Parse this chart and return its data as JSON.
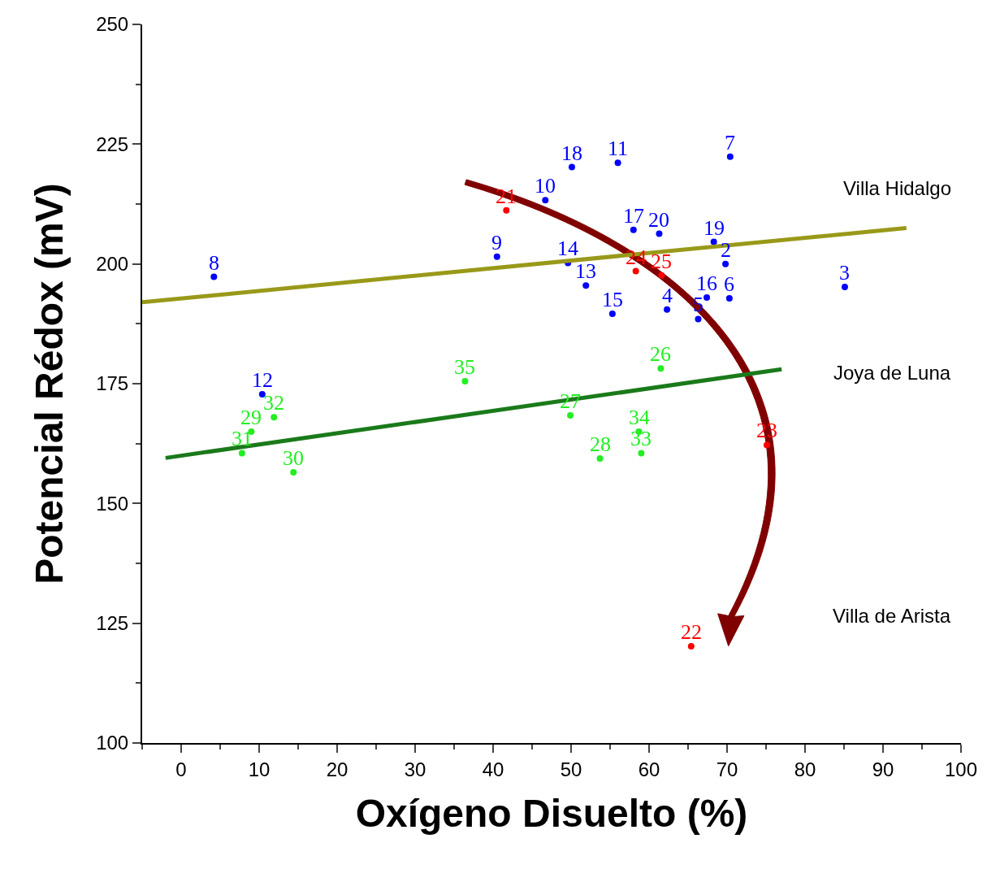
{
  "chart_data": {
    "type": "scatter",
    "xlabel": "Oxígeno Disuelto (%)",
    "ylabel": "Potencial Rédox (mV)",
    "xlim": [
      -5,
      100
    ],
    "ylim": [
      100,
      250
    ],
    "xticks": [
      0,
      10,
      20,
      30,
      40,
      50,
      60,
      70,
      80,
      90,
      100
    ],
    "yticks": [
      100,
      125,
      150,
      175,
      200,
      225,
      250
    ],
    "grid": false,
    "marker": "circle",
    "annotations": [
      "Villa Hidalgo",
      "Joya de Luna",
      "Villa de Arista",
      {
        "text": "8",
        "x": 4.2,
        "y": 197.3
      },
      {
        "text": "9",
        "x": 40.5,
        "y": 201.5
      },
      {
        "text": "10",
        "x": 46.7,
        "y": 213.3
      },
      {
        "text": "18",
        "x": 50.1,
        "y": 220.2
      },
      {
        "text": "11",
        "x": 56.0,
        "y": 221.1
      },
      {
        "text": "7",
        "x": 70.4,
        "y": 222.4
      },
      {
        "text": "17",
        "x": 58.0,
        "y": 207.1
      },
      {
        "text": "20",
        "x": 61.3,
        "y": 206.3
      },
      {
        "text": "19",
        "x": 68.3,
        "y": 204.6
      },
      {
        "text": "2",
        "x": 69.8,
        "y": 200.0
      },
      {
        "text": "14",
        "x": 49.6,
        "y": 200.2
      },
      {
        "text": "13",
        "x": 51.9,
        "y": 195.5
      },
      {
        "text": "15",
        "x": 55.3,
        "y": 189.6
      },
      {
        "text": "4",
        "x": 62.3,
        "y": 190.5
      },
      {
        "text": "16",
        "x": 67.4,
        "y": 193.0
      },
      {
        "text": "5",
        "x": 66.3,
        "y": 188.5
      },
      {
        "text": "6",
        "x": 70.3,
        "y": 192.8
      },
      {
        "text": "3",
        "x": 85.1,
        "y": 195.2
      },
      {
        "text": "12",
        "x": 10.4,
        "y": 172.8
      },
      {
        "text": "21",
        "x": 41.7,
        "y": 211.2
      },
      {
        "text": "24",
        "x": 58.3,
        "y": 198.5
      },
      {
        "text": "25",
        "x": 61.6,
        "y": 197.6
      },
      {
        "text": "23",
        "x": 75.1,
        "y": 162.2
      },
      {
        "text": "22",
        "x": 65.4,
        "y": 120.2
      },
      {
        "text": "35",
        "x": 36.4,
        "y": 175.5
      },
      {
        "text": "26",
        "x": 61.5,
        "y": 178.2
      },
      {
        "text": "27",
        "x": 49.9,
        "y": 168.4
      },
      {
        "text": "34",
        "x": 58.7,
        "y": 165.0
      },
      {
        "text": "33",
        "x": 59.0,
        "y": 160.5
      },
      {
        "text": "28",
        "x": 53.7,
        "y": 159.4
      },
      {
        "text": "32",
        "x": 11.9,
        "y": 168.0
      },
      {
        "text": "29",
        "x": 9.0,
        "y": 165.0
      },
      {
        "text": "31",
        "x": 7.8,
        "y": 160.5
      },
      {
        "text": "30",
        "x": 14.4,
        "y": 156.5
      }
    ],
    "series": [
      {
        "color": "#0000ff",
        "x": [
          4.2,
          40.5,
          46.7,
          50.1,
          56.0,
          70.4,
          58.0,
          61.3,
          68.3,
          69.8,
          49.6,
          51.9,
          55.3,
          62.3,
          67.4,
          66.3,
          70.3,
          85.1,
          10.4
        ],
        "values": [
          197.3,
          201.5,
          213.3,
          220.2,
          221.1,
          222.4,
          207.1,
          206.3,
          204.6,
          200.0,
          200.2,
          195.5,
          189.6,
          190.5,
          193.0,
          188.5,
          192.8,
          195.2,
          172.8
        ]
      },
      {
        "color": "#ff0000",
        "x": [
          41.7,
          58.3,
          61.6,
          75.1,
          65.4
        ],
        "values": [
          211.2,
          198.5,
          197.6,
          162.2,
          120.2
        ]
      },
      {
        "color": "#22ee22",
        "x": [
          36.4,
          61.5,
          49.9,
          58.7,
          59.0,
          53.7,
          11.9,
          9.0,
          7.8,
          14.4
        ],
        "values": [
          175.5,
          178.2,
          168.4,
          165.0,
          160.5,
          159.4,
          168.0,
          165.0,
          160.5,
          156.5
        ]
      },
      {
        "type": "line",
        "marker": "none",
        "color": "#999919",
        "x": [
          -5,
          93
        ],
        "values": [
          192,
          207.5
        ]
      },
      {
        "type": "line",
        "marker": "none",
        "color": "#1a7a1a",
        "x": [
          -2,
          77
        ],
        "values": [
          159.5,
          178
        ]
      }
    ]
  }
}
